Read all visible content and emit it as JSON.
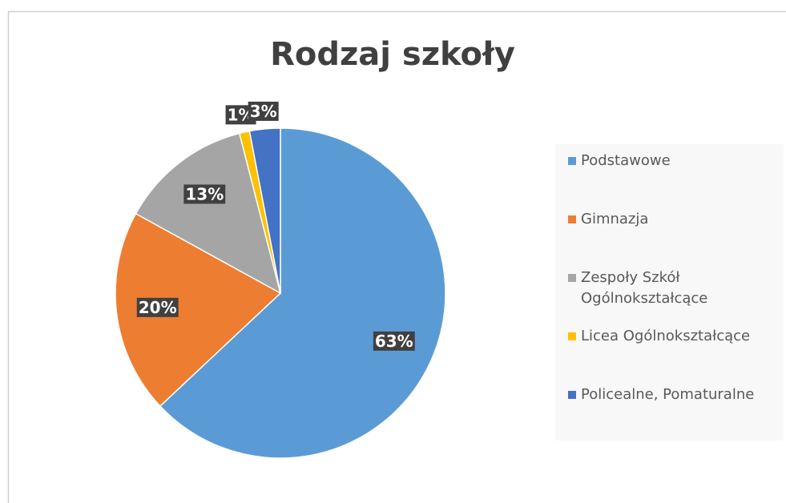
{
  "chart_data": {
    "type": "pie",
    "title": "Rodzaj szkoły",
    "categories": [
      "Podstawowe",
      "Gimnazja",
      "Zespoły Szkół Ogólnokształcące",
      "Licea Ogólnokształcące",
      "Policealne, Pomaturalne"
    ],
    "values": [
      63,
      20,
      13,
      1,
      3
    ],
    "value_labels": [
      "63%",
      "20%",
      "13%",
      "1%",
      "3%"
    ],
    "colors": [
      "#5b9bd5",
      "#ed7d31",
      "#a5a5a5",
      "#ffc000",
      "#4472c4"
    ],
    "legend": "right"
  }
}
